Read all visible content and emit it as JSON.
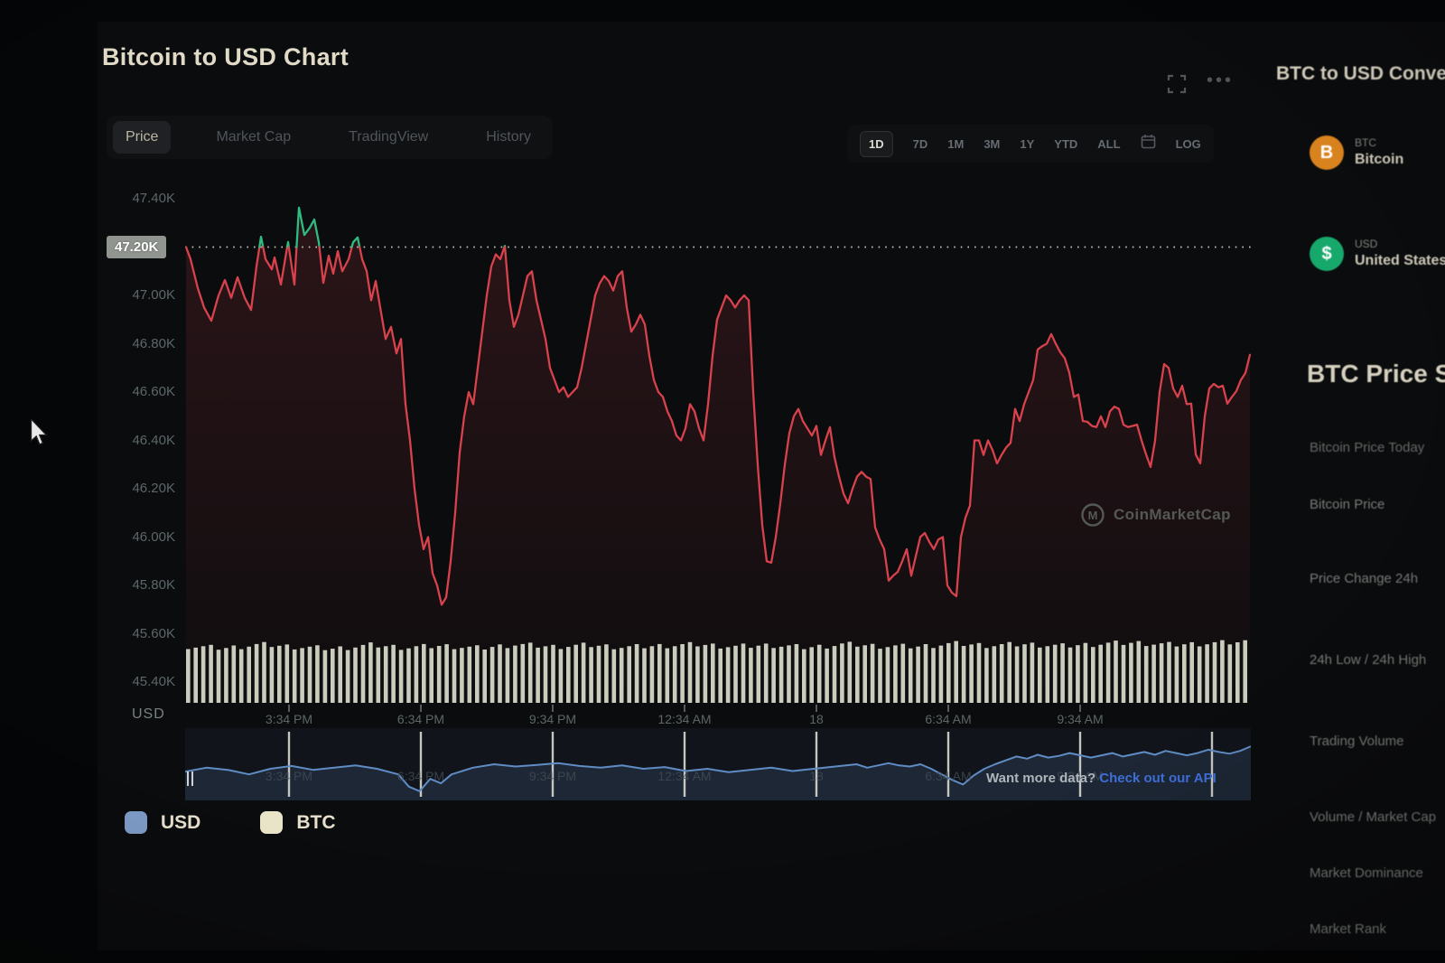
{
  "header": {
    "title": "Bitcoin to USD Chart"
  },
  "toolbar": {
    "tabs": [
      "Price",
      "Market Cap",
      "TradingView",
      "History"
    ],
    "active_tab": "Price",
    "ranges": [
      "1D",
      "7D",
      "1M",
      "3M",
      "1Y",
      "YTD",
      "ALL"
    ],
    "active_range": "1D",
    "log_label": "LOG"
  },
  "chart_data": {
    "type": "line",
    "title": "Bitcoin to USD Chart",
    "pair": "BTC/USD",
    "y_unit": "USD",
    "y_ticks": [
      "47.40K",
      "47.20K",
      "47.00K",
      "46.80K",
      "46.60K",
      "46.40K",
      "46.20K",
      "46.00K",
      "45.80K",
      "45.60K",
      "45.40K"
    ],
    "y_range": [
      45400,
      47400
    ],
    "open_price": 47200,
    "open_label": "47.20K",
    "x_ticks": [
      "3:34 PM",
      "6:34 PM",
      "9:34 PM",
      "12:34 AM",
      "18",
      "6:34 AM",
      "9:34 AM"
    ],
    "line_color_up": "#2fbc80",
    "line_color_down": "#d8424c",
    "volume_color": "#dee2d1",
    "navigator_color": "#5f8cc4",
    "price_series": [
      [
        0,
        47200
      ],
      [
        5,
        47150
      ],
      [
        13,
        47030
      ],
      [
        20,
        46950
      ],
      [
        28,
        46895
      ],
      [
        36,
        47000
      ],
      [
        43,
        47064
      ],
      [
        50,
        46990
      ],
      [
        57,
        47075
      ],
      [
        65,
        46990
      ],
      [
        72,
        46940
      ],
      [
        78,
        47120
      ],
      [
        83,
        47243
      ],
      [
        88,
        47150
      ],
      [
        95,
        47108
      ],
      [
        98,
        47157
      ],
      [
        105,
        47045
      ],
      [
        113,
        47221
      ],
      [
        120,
        47045
      ],
      [
        125,
        47363
      ],
      [
        131,
        47250
      ],
      [
        137,
        47280
      ],
      [
        142,
        47314
      ],
      [
        147,
        47220
      ],
      [
        152,
        47052
      ],
      [
        158,
        47164
      ],
      [
        163,
        47090
      ],
      [
        168,
        47183
      ],
      [
        173,
        47100
      ],
      [
        180,
        47150
      ],
      [
        185,
        47220
      ],
      [
        190,
        47240
      ],
      [
        195,
        47150
      ],
      [
        200,
        47100
      ],
      [
        205,
        46980
      ],
      [
        210,
        47060
      ],
      [
        215,
        46950
      ],
      [
        221,
        46820
      ],
      [
        227,
        46870
      ],
      [
        233,
        46760
      ],
      [
        238,
        46820
      ],
      [
        243,
        46550
      ],
      [
        248,
        46400
      ],
      [
        253,
        46200
      ],
      [
        258,
        46050
      ],
      [
        263,
        45950
      ],
      [
        268,
        46000
      ],
      [
        273,
        45850
      ],
      [
        278,
        45800
      ],
      [
        283,
        45720
      ],
      [
        288,
        45750
      ],
      [
        293,
        45900
      ],
      [
        298,
        46100
      ],
      [
        303,
        46350
      ],
      [
        308,
        46500
      ],
      [
        313,
        46600
      ],
      [
        318,
        46550
      ],
      [
        323,
        46700
      ],
      [
        328,
        46850
      ],
      [
        333,
        47000
      ],
      [
        338,
        47120
      ],
      [
        343,
        47170
      ],
      [
        348,
        47150
      ],
      [
        353,
        47205
      ],
      [
        358,
        46980
      ],
      [
        363,
        46870
      ],
      [
        368,
        46920
      ],
      [
        373,
        47000
      ],
      [
        378,
        47080
      ],
      [
        383,
        47100
      ],
      [
        388,
        46980
      ],
      [
        393,
        46900
      ],
      [
        398,
        46820
      ],
      [
        403,
        46700
      ],
      [
        408,
        46650
      ],
      [
        413,
        46600
      ],
      [
        418,
        46620
      ],
      [
        423,
        46580
      ],
      [
        428,
        46600
      ],
      [
        433,
        46620
      ],
      [
        438,
        46700
      ],
      [
        443,
        46800
      ],
      [
        448,
        46900
      ],
      [
        453,
        47000
      ],
      [
        458,
        47050
      ],
      [
        463,
        47080
      ],
      [
        468,
        47060
      ],
      [
        473,
        47020
      ],
      [
        478,
        47080
      ],
      [
        483,
        47100
      ],
      [
        488,
        46950
      ],
      [
        493,
        46850
      ],
      [
        498,
        46880
      ],
      [
        503,
        46920
      ],
      [
        508,
        46880
      ],
      [
        513,
        46750
      ],
      [
        518,
        46650
      ],
      [
        523,
        46600
      ],
      [
        528,
        46580
      ],
      [
        533,
        46520
      ],
      [
        538,
        46480
      ],
      [
        543,
        46420
      ],
      [
        548,
        46400
      ],
      [
        553,
        46450
      ],
      [
        558,
        46550
      ],
      [
        563,
        46520
      ],
      [
        568,
        46450
      ],
      [
        573,
        46400
      ],
      [
        578,
        46550
      ],
      [
        583,
        46750
      ],
      [
        588,
        46900
      ],
      [
        593,
        46950
      ],
      [
        598,
        47000
      ],
      [
        603,
        46980
      ],
      [
        608,
        46950
      ],
      [
        613,
        46980
      ],
      [
        618,
        47000
      ],
      [
        623,
        46980
      ],
      [
        628,
        46600
      ],
      [
        633,
        46300
      ],
      [
        638,
        46050
      ],
      [
        643,
        45900
      ],
      [
        648,
        45894
      ],
      [
        653,
        46000
      ],
      [
        658,
        46140
      ],
      [
        663,
        46300
      ],
      [
        668,
        46430
      ],
      [
        673,
        46500
      ],
      [
        678,
        46530
      ],
      [
        683,
        46480
      ],
      [
        688,
        46450
      ],
      [
        693,
        46420
      ],
      [
        698,
        46460
      ],
      [
        703,
        46340
      ],
      [
        708,
        46400
      ],
      [
        713,
        46455
      ],
      [
        718,
        46330
      ],
      [
        723,
        46250
      ],
      [
        728,
        46180
      ],
      [
        733,
        46140
      ],
      [
        738,
        46200
      ],
      [
        743,
        46250
      ],
      [
        748,
        46270
      ],
      [
        753,
        46250
      ],
      [
        758,
        46240
      ],
      [
        763,
        46040
      ],
      [
        768,
        45990
      ],
      [
        773,
        45950
      ],
      [
        778,
        45820
      ],
      [
        783,
        45840
      ],
      [
        788,
        45856
      ],
      [
        793,
        45900
      ],
      [
        798,
        45950
      ],
      [
        803,
        45840
      ],
      [
        808,
        45920
      ],
      [
        813,
        46000
      ],
      [
        818,
        46017
      ],
      [
        823,
        45980
      ],
      [
        828,
        45950
      ],
      [
        833,
        45990
      ],
      [
        838,
        46000
      ],
      [
        843,
        45800
      ],
      [
        848,
        45770
      ],
      [
        853,
        45755
      ],
      [
        858,
        46000
      ],
      [
        863,
        46080
      ],
      [
        868,
        46130
      ],
      [
        873,
        46400
      ],
      [
        878,
        46400
      ],
      [
        883,
        46340
      ],
      [
        888,
        46400
      ],
      [
        893,
        46360
      ],
      [
        898,
        46305
      ],
      [
        903,
        46340
      ],
      [
        908,
        46370
      ],
      [
        913,
        46390
      ],
      [
        918,
        46530
      ],
      [
        923,
        46480
      ],
      [
        928,
        46550
      ],
      [
        933,
        46600
      ],
      [
        938,
        46650
      ],
      [
        943,
        46776
      ],
      [
        948,
        46790
      ],
      [
        953,
        46800
      ],
      [
        958,
        46840
      ],
      [
        963,
        46800
      ],
      [
        968,
        46765
      ],
      [
        973,
        46740
      ],
      [
        978,
        46680
      ],
      [
        983,
        46580
      ],
      [
        988,
        46590
      ],
      [
        993,
        46480
      ],
      [
        998,
        46477
      ],
      [
        1003,
        46460
      ],
      [
        1008,
        46455
      ],
      [
        1013,
        46500
      ],
      [
        1018,
        46455
      ],
      [
        1023,
        46520
      ],
      [
        1028,
        46540
      ],
      [
        1033,
        46530
      ],
      [
        1038,
        46465
      ],
      [
        1043,
        46455
      ],
      [
        1048,
        46460
      ],
      [
        1053,
        46465
      ],
      [
        1058,
        46400
      ],
      [
        1063,
        46342
      ],
      [
        1068,
        46290
      ],
      [
        1073,
        46400
      ],
      [
        1078,
        46600
      ],
      [
        1083,
        46716
      ],
      [
        1088,
        46700
      ],
      [
        1093,
        46615
      ],
      [
        1098,
        46580
      ],
      [
        1103,
        46626
      ],
      [
        1108,
        46550
      ],
      [
        1113,
        46552
      ],
      [
        1118,
        46342
      ],
      [
        1123,
        46305
      ],
      [
        1128,
        46500
      ],
      [
        1133,
        46615
      ],
      [
        1138,
        46634
      ],
      [
        1143,
        46620
      ],
      [
        1148,
        46626
      ],
      [
        1153,
        46552
      ],
      [
        1158,
        46580
      ],
      [
        1163,
        46604
      ],
      [
        1168,
        46650
      ],
      [
        1173,
        46679
      ],
      [
        1178,
        46754
      ]
    ],
    "volume_profile": [
      0.78,
      0.72,
      0.84,
      0.76,
      0.7,
      0.82,
      0.74,
      0.8,
      0.72,
      0.84,
      0.77,
      0.82,
      0.75,
      0.8,
      0.84,
      0.77,
      0.82,
      0.74,
      0.85,
      0.79,
      0.77,
      0.87,
      0.81,
      0.85,
      0.79,
      0.86,
      0.9,
      0.83,
      0.88,
      0.92
    ],
    "navigator_series": [
      [
        0,
        0.45
      ],
      [
        2,
        0.52
      ],
      [
        4,
        0.48
      ],
      [
        6,
        0.4
      ],
      [
        8,
        0.5
      ],
      [
        10,
        0.55
      ],
      [
        12,
        0.48
      ],
      [
        14,
        0.52
      ],
      [
        16,
        0.56
      ],
      [
        18,
        0.5
      ],
      [
        20,
        0.4
      ],
      [
        21,
        0.18
      ],
      [
        22,
        0.1
      ],
      [
        23,
        0.32
      ],
      [
        24,
        0.24
      ],
      [
        25,
        0.4
      ],
      [
        27,
        0.52
      ],
      [
        29,
        0.58
      ],
      [
        31,
        0.54
      ],
      [
        33,
        0.57
      ],
      [
        35,
        0.6
      ],
      [
        37,
        0.55
      ],
      [
        39,
        0.52
      ],
      [
        41,
        0.56
      ],
      [
        43,
        0.5
      ],
      [
        45,
        0.53
      ],
      [
        47,
        0.46
      ],
      [
        49,
        0.5
      ],
      [
        51,
        0.44
      ],
      [
        53,
        0.48
      ],
      [
        55,
        0.52
      ],
      [
        57,
        0.46
      ],
      [
        59,
        0.5
      ],
      [
        61,
        0.54
      ],
      [
        63,
        0.58
      ],
      [
        64,
        0.52
      ],
      [
        65,
        0.56
      ],
      [
        66,
        0.6
      ],
      [
        67,
        0.56
      ],
      [
        68,
        0.54
      ],
      [
        69,
        0.58
      ],
      [
        70,
        0.5
      ],
      [
        71,
        0.4
      ],
      [
        72,
        0.3
      ],
      [
        73,
        0.22
      ],
      [
        74,
        0.38
      ],
      [
        75,
        0.5
      ],
      [
        76,
        0.58
      ],
      [
        77,
        0.65
      ],
      [
        78,
        0.72
      ],
      [
        79,
        0.68
      ],
      [
        80,
        0.75
      ],
      [
        81,
        0.7
      ],
      [
        82,
        0.73
      ],
      [
        83,
        0.78
      ],
      [
        84,
        0.74
      ],
      [
        85,
        0.7
      ],
      [
        86,
        0.74
      ],
      [
        87,
        0.78
      ],
      [
        88,
        0.72
      ],
      [
        89,
        0.76
      ],
      [
        90,
        0.8
      ],
      [
        91,
        0.75
      ],
      [
        92,
        0.82
      ],
      [
        93,
        0.78
      ],
      [
        94,
        0.74
      ],
      [
        95,
        0.78
      ],
      [
        96,
        0.84
      ],
      [
        97,
        0.8
      ],
      [
        98,
        0.77
      ],
      [
        99,
        0.82
      ],
      [
        100,
        0.9
      ]
    ]
  },
  "legend": [
    {
      "label": "USD",
      "color": "#7d9cc7"
    },
    {
      "label": "BTC",
      "color": "#e9e3c8"
    }
  ],
  "watermark": {
    "label": "CoinMarketCap"
  },
  "footer": {
    "prompt": "Want more data?",
    "link_label": "Check out our API"
  },
  "sidebar": {
    "converter": {
      "title": "BTC to USD Converter",
      "rows": [
        {
          "code": "BTC",
          "name": "Bitcoin",
          "color": "#d9831f",
          "symbol": "B"
        },
        {
          "code": "USD",
          "name": "United States Dollar",
          "color": "#17a96c",
          "symbol": "$"
        }
      ]
    },
    "stats": {
      "title": "BTC Price Statistics",
      "subtitle": "Bitcoin Price Today",
      "rows": [
        "Bitcoin Price",
        "Price Change 24h",
        "24h Low / 24h High",
        "Trading Volume",
        "Volume / Market Cap",
        "Market Dominance",
        "Market Rank"
      ]
    }
  }
}
